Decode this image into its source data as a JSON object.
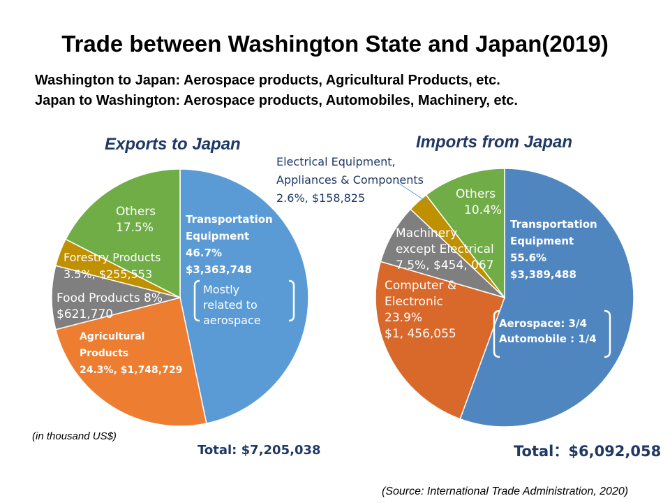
{
  "title": "Trade between Washington State and Japan(2019)",
  "subtitle_lines": [
    "Washington to Japan: Aerospace products, Agricultural Products, etc.",
    "Japan to Washington: Aerospace products, Automobiles, Machinery, etc."
  ],
  "unit_note": "(in thousand US$)",
  "source": "(Source: International Trade Administration, 2020)",
  "colors": {
    "blue": "#5b9bd5",
    "orange": "#ed7d31",
    "gray": "#7f7f7f",
    "gold": "#bf9000",
    "green": "#70ad47",
    "title_blue": "#1f3864"
  },
  "chart_data": [
    {
      "type": "pie",
      "title": "Exports to Japan",
      "total_label": "Total: $7,205,038",
      "slices": [
        {
          "name": "Transportation Equipment",
          "percent": 46.7,
          "value": 3363748,
          "color": "#5b9bd5",
          "label_lines": [
            "Transportation",
            "Equipment",
            "46.7%",
            "$3,363,748"
          ]
        },
        {
          "name": "Agricultural Products",
          "percent": 24.3,
          "value": 1748729,
          "color": "#ed7d31",
          "label_lines": [
            "Agricultural",
            "Products",
            "24.3%, $1,748,729"
          ]
        },
        {
          "name": "Food Products",
          "percent": 8,
          "value": 621770,
          "color": "#7f7f7f",
          "label_lines": [
            "Food Products 8%",
            "$621,770"
          ]
        },
        {
          "name": "Forestry Products",
          "percent": 3.5,
          "value": 255553,
          "color": "#bf9000",
          "label_lines": [
            "Forestry Products",
            "3.5%,  $255,553"
          ]
        },
        {
          "name": "Others",
          "percent": 17.5,
          "color": "#70ad47",
          "label_lines": [
            "Others",
            "17.5%"
          ]
        }
      ],
      "annotation_lines": [
        "Mostly",
        "related to",
        "aerospace"
      ]
    },
    {
      "type": "pie",
      "title": "Imports from Japan",
      "total_label": "Total：$6,092,058",
      "slices": [
        {
          "name": "Transportation Equipment",
          "percent": 55.6,
          "value": 3389488,
          "color": "#4f86c0",
          "label_lines": [
            "Transportation",
            "Equipment",
            "55.6%",
            "$3,389,488"
          ]
        },
        {
          "name": "Computer & Electronic",
          "percent": 23.9,
          "value": 1456055,
          "color": "#d9682b",
          "label_lines": [
            "Computer &",
            "Electronic",
            "23.9%",
            "$1, 456,055"
          ]
        },
        {
          "name": "Machinery except Electrical",
          "percent": 7.5,
          "value": 454067,
          "color": "#7f7f7f",
          "label_lines": [
            "Machinery",
            "except Electrical",
            "7.5%, $454,  067"
          ]
        },
        {
          "name": "Electrical Equipment, Appliances & Components",
          "percent": 2.6,
          "value": 158825,
          "color": "#bf9000",
          "label_lines": [
            "Electrical Equipment,",
            "Appliances & Components",
            "2.6%, $158,825"
          ]
        },
        {
          "name": "Others",
          "percent": 10.4,
          "color": "#70ad47",
          "label_lines": [
            "Others",
            "10.4%"
          ]
        }
      ],
      "annotation_lines": [
        "Aerospace:    3/4",
        "Automobile : 1/4"
      ]
    }
  ]
}
